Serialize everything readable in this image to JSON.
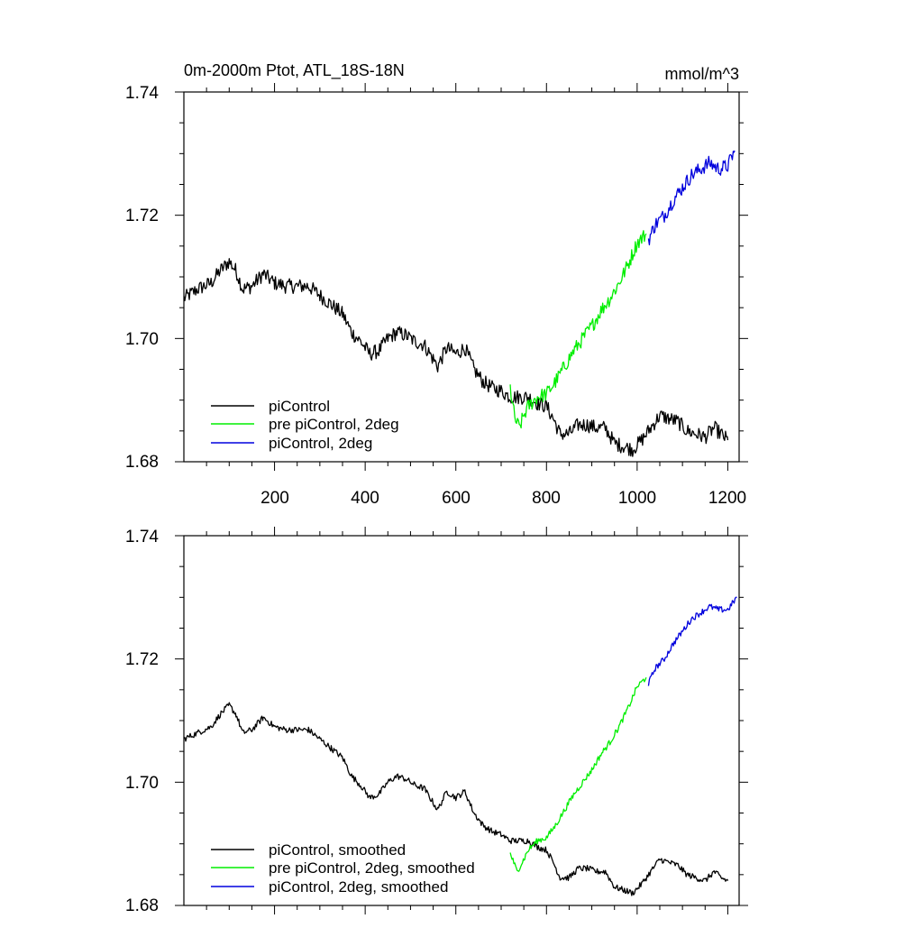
{
  "chart_data": [
    {
      "type": "line",
      "title": "0m-2000m Ptot, ATL_18S-18N",
      "units": "mmol/m^3",
      "xlim": [
        0,
        1225
      ],
      "ylim": [
        1.68,
        1.74
      ],
      "x_ticks": [
        200,
        400,
        600,
        800,
        1000,
        1200
      ],
      "x_tick_labels": [
        "200",
        "400",
        "600",
        "800",
        "1000",
        "1200"
      ],
      "y_ticks": [
        1.68,
        1.7,
        1.72,
        1.74
      ],
      "y_tick_labels": [
        "1.68",
        "1.70",
        "1.72",
        "1.74"
      ],
      "legend_position": "bottom-left",
      "noise": 0.0012,
      "series": [
        {
          "name": "piControl",
          "color": "#000000",
          "points": [
            [
              0,
              1.7065
            ],
            [
              30,
              1.708
            ],
            [
              60,
              1.709
            ],
            [
              80,
              1.711
            ],
            [
              100,
              1.7125
            ],
            [
              115,
              1.711
            ],
            [
              130,
              1.708
            ],
            [
              150,
              1.7085
            ],
            [
              175,
              1.7105
            ],
            [
              200,
              1.709
            ],
            [
              225,
              1.7085
            ],
            [
              250,
              1.7085
            ],
            [
              275,
              1.7085
            ],
            [
              300,
              1.707
            ],
            [
              325,
              1.7055
            ],
            [
              350,
              1.704
            ],
            [
              370,
              1.701
            ],
            [
              390,
              1.6995
            ],
            [
              410,
              1.6975
            ],
            [
              430,
              1.698
            ],
            [
              450,
              1.7
            ],
            [
              470,
              1.701
            ],
            [
              490,
              1.7005
            ],
            [
              510,
              1.6995
            ],
            [
              530,
              1.699
            ],
            [
              560,
              1.6955
            ],
            [
              580,
              1.6985
            ],
            [
              600,
              1.6975
            ],
            [
              620,
              1.6985
            ],
            [
              640,
              1.695
            ],
            [
              660,
              1.693
            ],
            [
              680,
              1.692
            ],
            [
              700,
              1.6915
            ],
            [
              720,
              1.6905
            ],
            [
              740,
              1.6905
            ],
            [
              760,
              1.6905
            ],
            [
              780,
              1.6895
            ],
            [
              800,
              1.689
            ],
            [
              815,
              1.687
            ],
            [
              830,
              1.6845
            ],
            [
              850,
              1.6845
            ],
            [
              870,
              1.686
            ],
            [
              890,
              1.686
            ],
            [
              910,
              1.6855
            ],
            [
              930,
              1.6855
            ],
            [
              950,
              1.683
            ],
            [
              970,
              1.6825
            ],
            [
              990,
              1.682
            ],
            [
              1010,
              1.6835
            ],
            [
              1030,
              1.6855
            ],
            [
              1050,
              1.6875
            ],
            [
              1070,
              1.687
            ],
            [
              1090,
              1.6865
            ],
            [
              1110,
              1.685
            ],
            [
              1130,
              1.6845
            ],
            [
              1150,
              1.684
            ],
            [
              1170,
              1.6855
            ],
            [
              1185,
              1.6845
            ],
            [
              1200,
              1.6835
            ]
          ]
        },
        {
          "name": "pre piControl, 2deg",
          "color": "#00ee00",
          "points": [
            [
              720,
              1.692
            ],
            [
              730,
              1.687
            ],
            [
              740,
              1.6855
            ],
            [
              750,
              1.6875
            ],
            [
              760,
              1.689
            ],
            [
              780,
              1.6905
            ],
            [
              800,
              1.691
            ],
            [
              820,
              1.693
            ],
            [
              840,
              1.6955
            ],
            [
              860,
              1.698
            ],
            [
              880,
              1.7
            ],
            [
              900,
              1.702
            ],
            [
              920,
              1.7045
            ],
            [
              940,
              1.7065
            ],
            [
              960,
              1.709
            ],
            [
              980,
              1.712
            ],
            [
              1000,
              1.7155
            ],
            [
              1020,
              1.717
            ]
          ]
        },
        {
          "name": "piControl, 2deg",
          "color": "#0000dd",
          "points": [
            [
              1025,
              1.716
            ],
            [
              1040,
              1.7185
            ],
            [
              1060,
              1.72
            ],
            [
              1080,
              1.7225
            ],
            [
              1100,
              1.7245
            ],
            [
              1120,
              1.7265
            ],
            [
              1140,
              1.7275
            ],
            [
              1160,
              1.7285
            ],
            [
              1180,
              1.7275
            ],
            [
              1200,
              1.728
            ],
            [
              1215,
              1.7305
            ]
          ]
        }
      ]
    },
    {
      "type": "line",
      "title": "",
      "xlim": [
        0,
        1225
      ],
      "ylim": [
        1.68,
        1.74
      ],
      "x_ticks": [
        200,
        400,
        600,
        800,
        1000,
        1200
      ],
      "y_ticks": [
        1.68,
        1.7,
        1.72,
        1.74
      ],
      "y_tick_labels": [
        "1.68",
        "1.70",
        "1.72",
        "1.74"
      ],
      "legend_position": "bottom-left",
      "noise": 0.0005,
      "series": [
        {
          "name": "piControl, smoothed",
          "color": "#000000",
          "points": [
            [
              0,
              1.707
            ],
            [
              30,
              1.708
            ],
            [
              60,
              1.709
            ],
            [
              80,
              1.711
            ],
            [
              100,
              1.7125
            ],
            [
              115,
              1.711
            ],
            [
              130,
              1.708
            ],
            [
              150,
              1.7085
            ],
            [
              175,
              1.7105
            ],
            [
              200,
              1.709
            ],
            [
              225,
              1.7085
            ],
            [
              250,
              1.7085
            ],
            [
              275,
              1.7085
            ],
            [
              300,
              1.707
            ],
            [
              325,
              1.7055
            ],
            [
              350,
              1.704
            ],
            [
              370,
              1.701
            ],
            [
              390,
              1.6995
            ],
            [
              410,
              1.6975
            ],
            [
              430,
              1.698
            ],
            [
              450,
              1.7
            ],
            [
              470,
              1.701
            ],
            [
              490,
              1.7005
            ],
            [
              510,
              1.6995
            ],
            [
              530,
              1.699
            ],
            [
              560,
              1.6955
            ],
            [
              580,
              1.6985
            ],
            [
              600,
              1.6975
            ],
            [
              620,
              1.6985
            ],
            [
              640,
              1.695
            ],
            [
              660,
              1.693
            ],
            [
              680,
              1.692
            ],
            [
              700,
              1.6915
            ],
            [
              720,
              1.6905
            ],
            [
              740,
              1.6905
            ],
            [
              760,
              1.6905
            ],
            [
              780,
              1.6895
            ],
            [
              800,
              1.689
            ],
            [
              815,
              1.687
            ],
            [
              830,
              1.6845
            ],
            [
              850,
              1.6845
            ],
            [
              870,
              1.686
            ],
            [
              890,
              1.686
            ],
            [
              910,
              1.6855
            ],
            [
              930,
              1.6855
            ],
            [
              950,
              1.683
            ],
            [
              970,
              1.6825
            ],
            [
              990,
              1.682
            ],
            [
              1010,
              1.6835
            ],
            [
              1030,
              1.6855
            ],
            [
              1050,
              1.6875
            ],
            [
              1070,
              1.687
            ],
            [
              1090,
              1.6865
            ],
            [
              1110,
              1.685
            ],
            [
              1130,
              1.6845
            ],
            [
              1150,
              1.684
            ],
            [
              1170,
              1.6855
            ],
            [
              1185,
              1.6845
            ],
            [
              1200,
              1.684
            ]
          ]
        },
        {
          "name": "pre piControl, 2deg, smoothed",
          "color": "#00ee00",
          "points": [
            [
              720,
              1.6885
            ],
            [
              735,
              1.6855
            ],
            [
              750,
              1.6875
            ],
            [
              760,
              1.689
            ],
            [
              780,
              1.6905
            ],
            [
              800,
              1.691
            ],
            [
              820,
              1.693
            ],
            [
              840,
              1.6955
            ],
            [
              860,
              1.698
            ],
            [
              880,
              1.7
            ],
            [
              900,
              1.702
            ],
            [
              920,
              1.7045
            ],
            [
              940,
              1.7065
            ],
            [
              960,
              1.709
            ],
            [
              980,
              1.712
            ],
            [
              1000,
              1.7155
            ],
            [
              1020,
              1.717
            ]
          ]
        },
        {
          "name": "piControl, 2deg, smoothed",
          "color": "#0000dd",
          "points": [
            [
              1025,
              1.716
            ],
            [
              1040,
              1.7185
            ],
            [
              1060,
              1.72
            ],
            [
              1080,
              1.7225
            ],
            [
              1100,
              1.7245
            ],
            [
              1120,
              1.7265
            ],
            [
              1140,
              1.7275
            ],
            [
              1160,
              1.7285
            ],
            [
              1180,
              1.728
            ],
            [
              1200,
              1.728
            ],
            [
              1220,
              1.73
            ]
          ]
        }
      ]
    }
  ]
}
